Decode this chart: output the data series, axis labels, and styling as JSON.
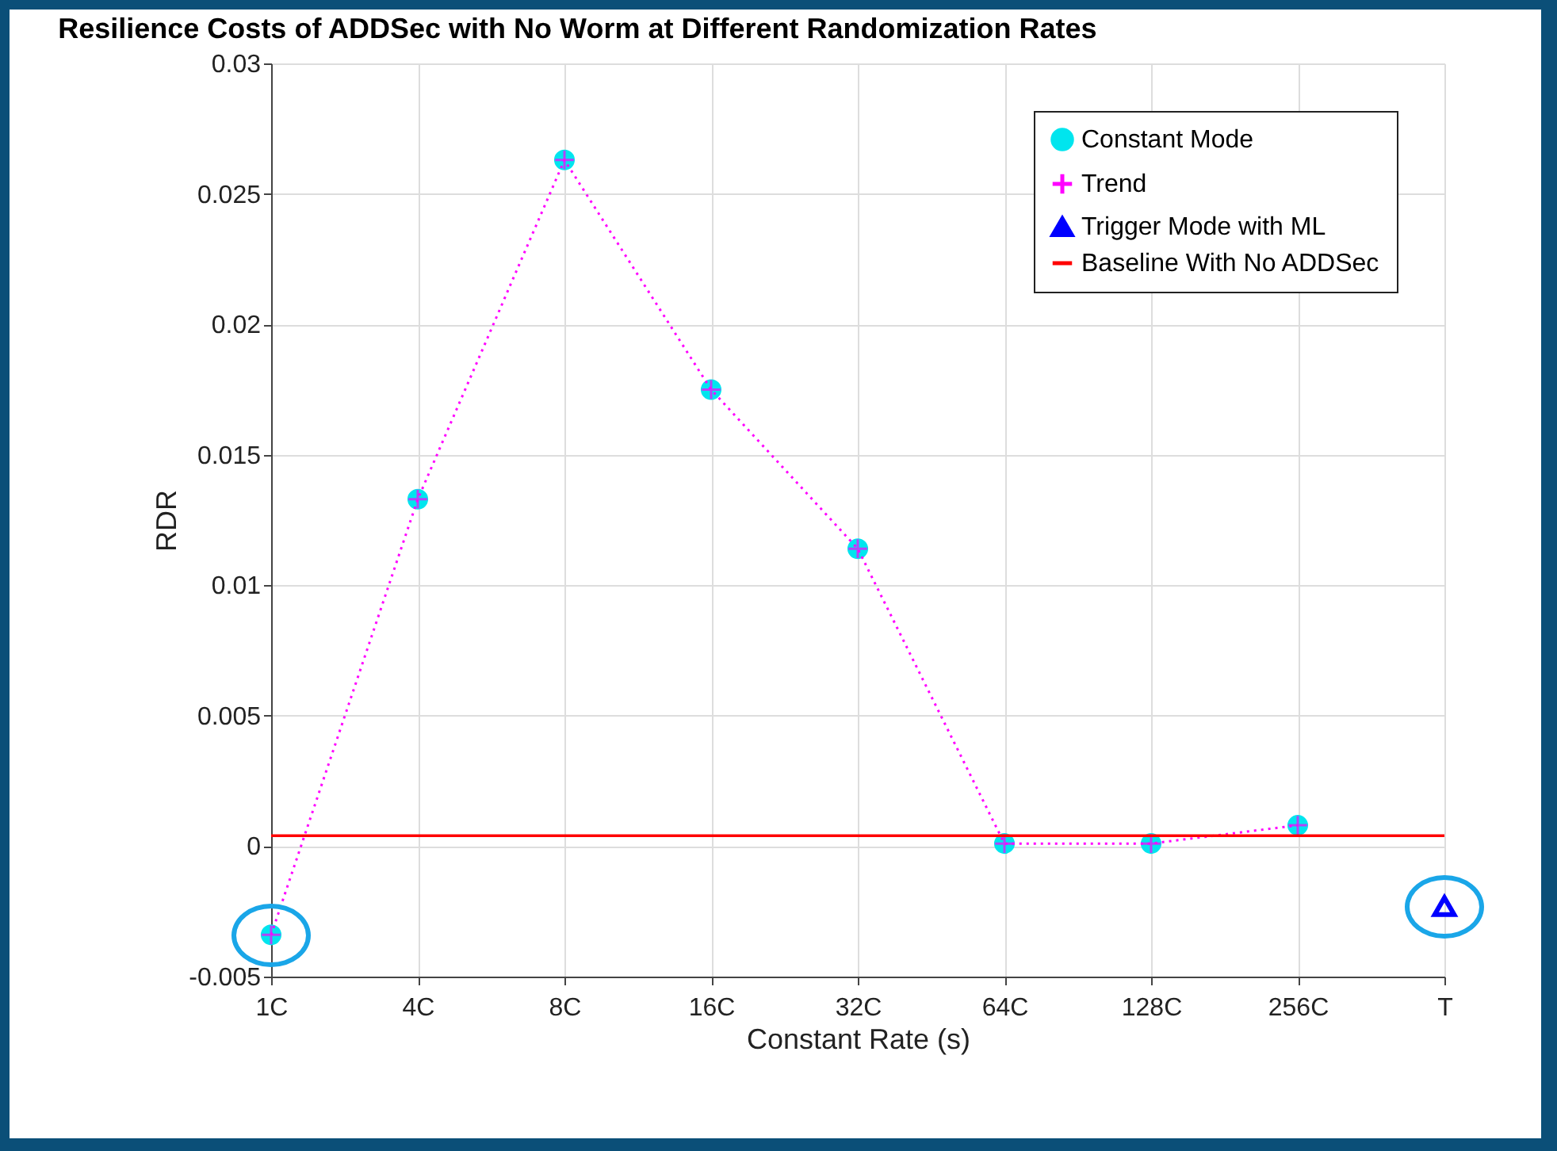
{
  "chart_data": {
    "type": "line",
    "title": "Resilience Costs of ADDSec with No Worm at Different Randomization Rates",
    "xlabel": "Constant Rate (s)",
    "ylabel": "RDR",
    "categories": [
      "1C",
      "4C",
      "8C",
      "16C",
      "32C",
      "64C",
      "128C",
      "256C",
      "T"
    ],
    "ylim": [
      -0.005,
      0.03
    ],
    "yticks": [
      -0.005,
      0,
      0.005,
      0.01,
      0.015,
      0.02,
      0.025,
      0.03
    ],
    "grid": true,
    "legend": "top right",
    "series": [
      {
        "name": "Constant Mode",
        "type": "scatter",
        "marker": "circle",
        "color": "#00e5ee",
        "values": [
          -0.0034,
          0.0133,
          0.0263,
          0.0175,
          0.0114,
          0.0001,
          0.0001,
          0.0008,
          null
        ]
      },
      {
        "name": "Trend",
        "marker": "cross",
        "line_style": "dotted",
        "color": "#ff00ff",
        "values": [
          -0.0034,
          0.0133,
          0.0263,
          0.0175,
          0.0114,
          0.0001,
          0.0001,
          0.0008,
          null
        ]
      },
      {
        "name": "Trigger Mode with ML",
        "type": "scatter",
        "marker": "triangle",
        "color": "#0000ff",
        "values": [
          null,
          null,
          null,
          null,
          null,
          null,
          null,
          null,
          -0.0023
        ]
      }
    ],
    "ref_lines": [
      {
        "axis": "y",
        "value": 0.0004,
        "label": "Baseline With No ADDSec",
        "color": "#ff0000"
      }
    ]
  }
}
